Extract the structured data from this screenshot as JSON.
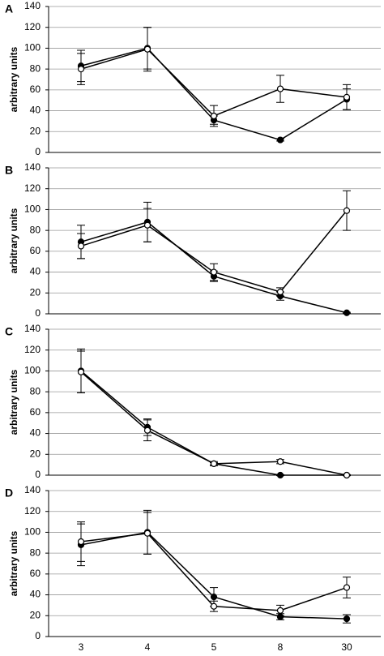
{
  "chart_data": [
    {
      "type": "line",
      "panel": "A",
      "y_label": "arbitrary units",
      "categories": [
        null,
        null,
        null,
        null,
        null
      ],
      "series": [
        {
          "color": "#000000",
          "marker": "filled",
          "values": [
            83,
            100,
            31,
            12,
            51
          ],
          "errors": [
            15,
            20,
            4,
            1,
            10
          ]
        },
        {
          "color": "#000000",
          "marker": "open",
          "values": [
            80,
            99,
            35,
            61,
            53
          ],
          "errors": [
            15,
            21,
            10,
            13,
            12
          ]
        }
      ],
      "ylim": [
        0,
        140
      ],
      "yticks": [
        0,
        20,
        40,
        60,
        80,
        100,
        120,
        140
      ],
      "grid": true
    },
    {
      "type": "line",
      "panel": "B",
      "y_label": "arbitrary units",
      "categories": [
        null,
        null,
        null,
        null,
        null
      ],
      "series": [
        {
          "color": "#000000",
          "marker": "filled",
          "values": [
            69,
            88,
            36,
            17,
            1
          ],
          "errors": [
            16,
            19,
            5,
            4,
            0.5
          ]
        },
        {
          "color": "#000000",
          "marker": "open",
          "values": [
            65,
            85,
            40,
            21,
            99
          ],
          "errors": [
            12,
            16,
            8,
            4,
            19
          ]
        }
      ],
      "ylim": [
        0,
        140
      ],
      "yticks": [
        0,
        20,
        40,
        60,
        80,
        100,
        120,
        140
      ],
      "grid": true
    },
    {
      "type": "line",
      "panel": "C",
      "y_label": "arbitrary units",
      "categories": [
        null,
        null,
        null,
        null,
        null
      ],
      "series": [
        {
          "color": "#000000",
          "marker": "filled",
          "values": [
            100,
            46,
            11,
            0,
            0
          ],
          "errors": [
            21,
            8,
            1,
            0.5,
            0.5
          ]
        },
        {
          "color": "#000000",
          "marker": "open",
          "values": [
            99,
            43,
            11,
            13,
            0
          ],
          "errors": [
            20,
            10,
            2,
            2,
            0.5
          ]
        }
      ],
      "ylim": [
        0,
        140
      ],
      "yticks": [
        0,
        20,
        40,
        60,
        80,
        100,
        120,
        140
      ],
      "grid": true
    },
    {
      "type": "line",
      "panel": "D",
      "y_label": "arbitrary units",
      "categories": [
        "3",
        "4",
        "5",
        "8",
        "30"
      ],
      "series": [
        {
          "color": "#000000",
          "marker": "filled",
          "values": [
            88,
            100,
            38,
            19,
            17
          ],
          "errors": [
            20,
            21,
            9,
            3,
            4
          ]
        },
        {
          "color": "#000000",
          "marker": "open",
          "values": [
            91,
            99,
            29,
            25,
            47
          ],
          "errors": [
            19,
            20,
            5,
            5,
            10
          ]
        }
      ],
      "ylim": [
        0,
        140
      ],
      "yticks": [
        0,
        20,
        40,
        60,
        80,
        100,
        120,
        140
      ],
      "grid": true
    }
  ]
}
